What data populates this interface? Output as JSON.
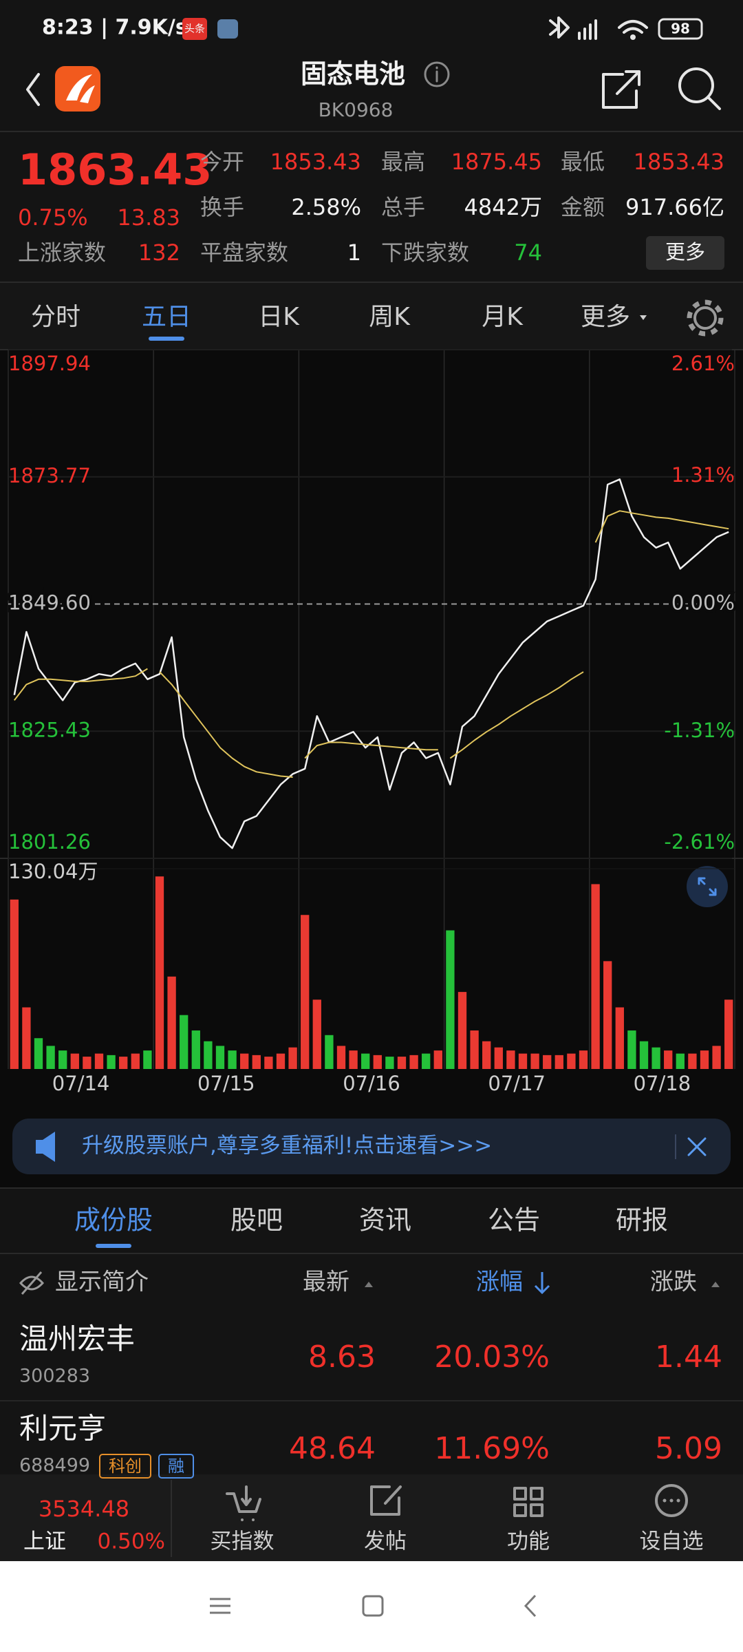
{
  "status_bar": {
    "time": "8:23 | 7.9K/s",
    "badge": "头条",
    "battery": "98"
  },
  "header": {
    "title": "固态电池",
    "code": "BK0968"
  },
  "quote": {
    "price": "1863.43",
    "change_pct": "0.75%",
    "change": "13.83",
    "stats": [
      {
        "label": "今开",
        "value": "1853.43",
        "color": "#f0302a"
      },
      {
        "label": "最高",
        "value": "1875.45",
        "color": "#f0302a"
      },
      {
        "label": "最低",
        "value": "1853.43",
        "color": "#f0302a"
      },
      {
        "label": "换手",
        "value": "2.58%",
        "color": "#f2f2f2"
      },
      {
        "label": "总手",
        "value": "4842万",
        "color": "#f2f2f2"
      },
      {
        "label": "金额",
        "value": "917.66亿",
        "color": "#f2f2f2"
      }
    ],
    "breadth": [
      {
        "label": "上涨家数",
        "value": "132",
        "color": "#f0302a"
      },
      {
        "label": "平盘家数",
        "value": "1",
        "color": "#f2f2f2"
      },
      {
        "label": "下跌家数",
        "value": "74",
        "color": "#25c13a"
      }
    ],
    "more_button": "更多"
  },
  "chart_tabs": {
    "items": [
      "分时",
      "五日",
      "日K",
      "周K",
      "月K",
      "更多"
    ],
    "active": 1
  },
  "chart_data": {
    "type": "line",
    "categories": [
      "07/14",
      "07/15",
      "07/16",
      "07/17",
      "07/18"
    ],
    "ylim": [
      1801.26,
      1897.94
    ],
    "yticks": [
      1801.26,
      1825.43,
      {
        "value": 1849.6,
        "label": "1849.60"
      },
      1873.77,
      1897.94
    ],
    "y2lim": [
      -2.61,
      2.61
    ],
    "y2ticks": [
      {
        "value": -2.61,
        "label": "-2.61%"
      },
      {
        "value": -1.31,
        "label": "-1.31%"
      },
      {
        "value": 0,
        "label": "0.00%"
      },
      {
        "value": 1.31,
        "label": "1.31%"
      },
      {
        "value": 2.61,
        "label": "2.61%"
      }
    ],
    "series": [
      {
        "color": "#f0f0f0",
        "joined": true,
        "values": [
          [
            1832.3,
            1844.3,
            1837.3,
            1834.3,
            1831.3,
            1834.7,
            1835.3,
            1836.3,
            1835.9,
            1837.3,
            1838.3,
            1835.3
          ],
          [
            1836.3,
            1843.3,
            1824.3,
            1816.3,
            1810.3,
            1805.3,
            1803.2,
            1808.3,
            1809.3,
            1812.3,
            1815.3,
            1817.3
          ],
          [
            1818.3,
            1828.3,
            1823.3,
            1824.3,
            1825.3,
            1822.3,
            1824.3,
            1814.3,
            1821.3,
            1823.3,
            1820.3,
            1821.3
          ],
          [
            1815.3,
            1826.3,
            1828.3,
            1832.3,
            1836.3,
            1839.3,
            1842.3,
            1844.3,
            1846.3,
            1847.3,
            1848.3,
            1849.3
          ],
          [
            1854.3,
            1872.3,
            1873.3,
            1866.3,
            1862.3,
            1860.3,
            1861.3,
            1856.3,
            1858.3,
            1860.3,
            1862.3,
            1863.3
          ]
        ]
      },
      {
        "color": "#e0c45c",
        "joined": false,
        "values": [
          [
            1831.3,
            1834.3,
            1835.3,
            1835.3,
            1835.1,
            1834.9,
            1834.9,
            1835.1,
            1835.3,
            1835.5,
            1835.9,
            1837.3
          ],
          [
            1836.7,
            1834.3,
            1831.3,
            1828.3,
            1825.3,
            1822.3,
            1820.3,
            1818.7,
            1817.7,
            1817.3,
            1816.9,
            1816.7
          ],
          [
            1820.3,
            1822.7,
            1823.3,
            1823.3,
            1823.1,
            1822.9,
            1822.7,
            1822.5,
            1822.3,
            1822.1,
            1821.9,
            1821.9
          ],
          [
            1820.3,
            1821.9,
            1823.7,
            1825.3,
            1826.7,
            1828.3,
            1829.7,
            1831.1,
            1832.3,
            1833.7,
            1835.3,
            1836.7
          ],
          [
            1861.3,
            1866.3,
            1867.3,
            1866.9,
            1866.5,
            1866.1,
            1865.9,
            1865.5,
            1865.1,
            1864.7,
            1864.3,
            1863.9
          ]
        ]
      }
    ],
    "volume": {
      "ylim": [
        0,
        130.04
      ],
      "yticks": [
        {
          "value": 130.04,
          "label": "130.04万"
        }
      ],
      "up_color": "#ea3a32",
      "down_color": "#25c13a",
      "values": [
        [
          110,
          40,
          20,
          15,
          12,
          10,
          8,
          10,
          9,
          8,
          10,
          12
        ],
        [
          125,
          60,
          35,
          25,
          18,
          15,
          12,
          10,
          9,
          8,
          10,
          14
        ],
        [
          100,
          45,
          22,
          15,
          12,
          10,
          9,
          8,
          8,
          9,
          10,
          12
        ],
        [
          90,
          50,
          25,
          18,
          14,
          12,
          10,
          10,
          9,
          9,
          10,
          12
        ],
        [
          120,
          70,
          40,
          25,
          18,
          14,
          12,
          10,
          10,
          12,
          15,
          45
        ]
      ]
    }
  },
  "banner": {
    "text": "升级股票账户,尊享多重福利!点击速看>>>"
  },
  "list_tabs": {
    "items": [
      "成份股",
      "股吧",
      "资讯",
      "公告",
      "研报"
    ],
    "active": 0
  },
  "table": {
    "columns": [
      "显示简介",
      "最新",
      "涨幅",
      "涨跌"
    ],
    "rows": [
      {
        "name": "温州宏丰",
        "code": "300283",
        "price": "8.63",
        "pct": "20.03%",
        "chg": "1.44",
        "tags": []
      },
      {
        "name": "利元亨",
        "code": "688499",
        "price": "48.64",
        "pct": "11.69%",
        "chg": "5.09",
        "tags": [
          "科创",
          "融"
        ]
      }
    ]
  },
  "bottom_bar": {
    "index_value": "3534.48",
    "index_name": "上证",
    "index_pct": "0.50%",
    "buttons": [
      "买指数",
      "发帖",
      "功能",
      "设自选"
    ]
  }
}
